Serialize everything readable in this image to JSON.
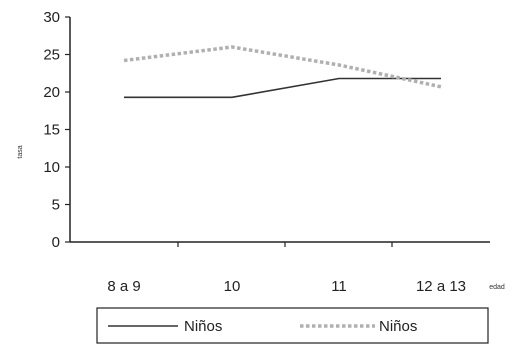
{
  "chart_data": {
    "type": "line",
    "categories": [
      "8 a 9",
      "10",
      "11",
      "12 a 13"
    ],
    "xlabel": "edad",
    "ylabel": "tasa",
    "ylim": [
      0,
      30
    ],
    "yticks": [
      "0",
      "5",
      "10",
      "15",
      "20",
      "25",
      "30"
    ],
    "grid": false,
    "legend_position": "bottom",
    "series": [
      {
        "name": "Niños",
        "style": "solid",
        "color": "#333333",
        "values": [
          19.3,
          19.3,
          21.8,
          21.8
        ]
      },
      {
        "name": "Niños",
        "style": "dotted",
        "color": "#b0b0b0",
        "values": [
          24.2,
          26.0,
          23.6,
          20.7
        ]
      }
    ]
  }
}
